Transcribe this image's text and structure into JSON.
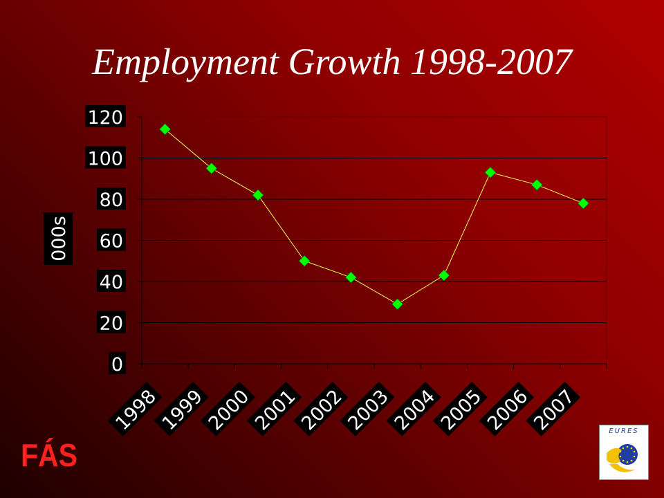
{
  "title": "Employment Growth 1998-2007",
  "chart_data": {
    "type": "line",
    "title": "Employment Growth 1998-2007",
    "ylabel": "000s",
    "xlabel": "",
    "categories": [
      "1998",
      "1999",
      "2000",
      "2001",
      "2002",
      "2003",
      "2004",
      "2005",
      "2006",
      "2007"
    ],
    "series": [
      {
        "values": [
          114,
          95,
          82,
          50,
          42,
          29,
          43,
          93,
          87,
          78
        ]
      }
    ],
    "ylim": [
      0,
      120
    ],
    "yticks": [
      0,
      20,
      40,
      60,
      80,
      100,
      120
    ],
    "grid": true,
    "legend": "none",
    "colors": {
      "line": "#f0ff60",
      "marker": "#00ff00",
      "grid": "#000000"
    }
  },
  "logos": {
    "fas": "FÁS",
    "eures": "EURES"
  }
}
